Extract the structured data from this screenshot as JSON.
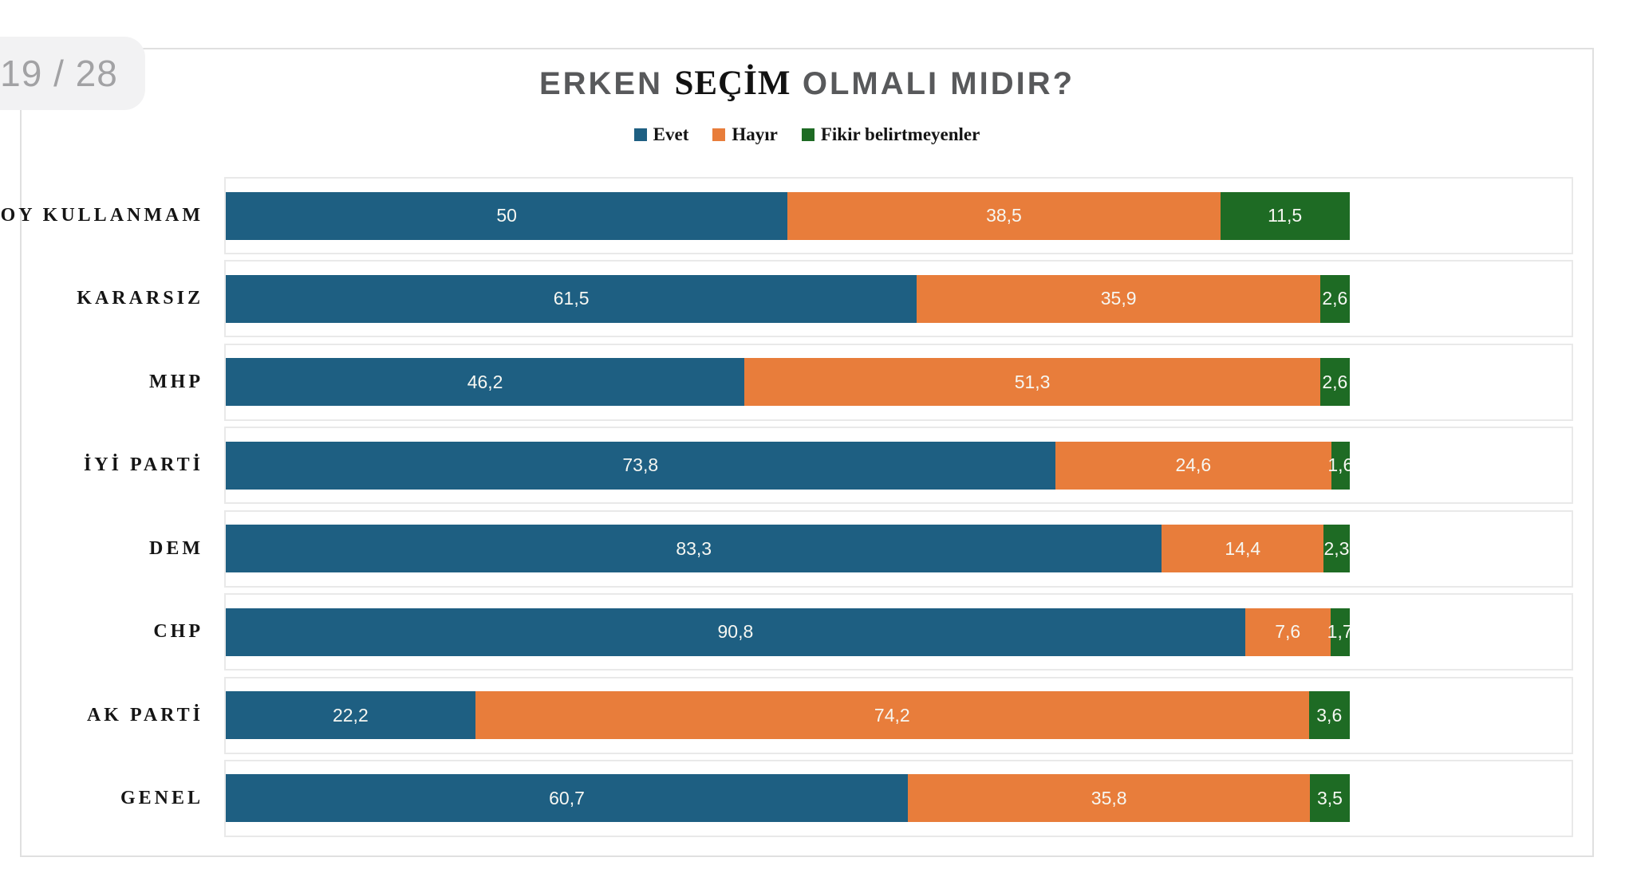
{
  "badge": {
    "label": "19 / 28"
  },
  "title": {
    "part1": "ERKEN",
    "part2": "SEÇİM",
    "part3": "OLMALI MIDIR?"
  },
  "legend": [
    {
      "label": "Evet",
      "color": "#1E5F82"
    },
    {
      "label": "Hayır",
      "color": "#E87D3B"
    },
    {
      "label": "Fikir belirtmeyenler",
      "color": "#1E6B24"
    }
  ],
  "chart_data": {
    "type": "bar",
    "stacked": true,
    "orientation": "horizontal",
    "title": "ERKEN SEÇİM OLMALI MIDIR?",
    "categories": [
      "OY KULLANMAM",
      "KARARSIZ",
      "MHP",
      "İYİ PARTİ",
      "DEM",
      "CHP",
      "AK PARTİ",
      "GENEL"
    ],
    "category_order": "top-to-bottom",
    "series": [
      {
        "name": "Evet",
        "color": "#1E5F82",
        "values": [
          50,
          61.5,
          46.2,
          73.8,
          83.3,
          90.8,
          22.2,
          60.7
        ],
        "labels": [
          "50",
          "61,5",
          "46,2",
          "73,8",
          "83,3",
          "90,8",
          "22,2",
          "60,7"
        ]
      },
      {
        "name": "Hayır",
        "color": "#E87D3B",
        "values": [
          38.5,
          35.9,
          51.3,
          24.6,
          14.4,
          7.6,
          74.2,
          35.8
        ],
        "labels": [
          "38,5",
          "35,9",
          "51,3",
          "24,6",
          "14,4",
          "7,6",
          "74,2",
          "35,8"
        ]
      },
      {
        "name": "Fikir belirtmeyenler",
        "color": "#1E6B24",
        "values": [
          11.5,
          2.6,
          2.6,
          1.6,
          2.3,
          1.7,
          3.6,
          3.5
        ],
        "labels": [
          "11,5",
          "2,6",
          "2,6",
          "1,6",
          "2,3",
          "1,7",
          "3,6",
          "3,5"
        ]
      }
    ],
    "xlim": [
      0,
      119.8
    ],
    "grid": false,
    "legend_position": "top",
    "value_label_color": "#F6F7F2"
  }
}
